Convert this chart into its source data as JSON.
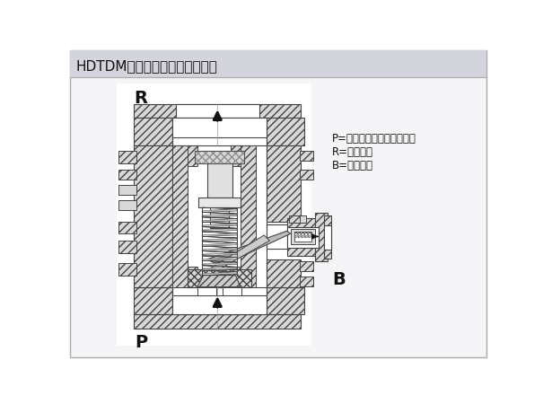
{
  "title": "HDTDM自动再循环阀示图如下：",
  "title_bg": "#d4d4dc",
  "outer_bg": "#ffffff",
  "border_color": "#888888",
  "label_R": "R",
  "label_P": "P",
  "label_B": "B",
  "legend_lines": [
    "P=阀门入口（接泵的出口）",
    "R=阀门出口",
    "B=旁路出口"
  ],
  "hatch_fc": "#d8d8d8",
  "white": "#ffffff",
  "line_color": "#444444",
  "arrow_color": "#111111",
  "text_color": "#111111",
  "fontsize_title": 11,
  "fontsize_labels": 13,
  "fontsize_legend": 8.5
}
